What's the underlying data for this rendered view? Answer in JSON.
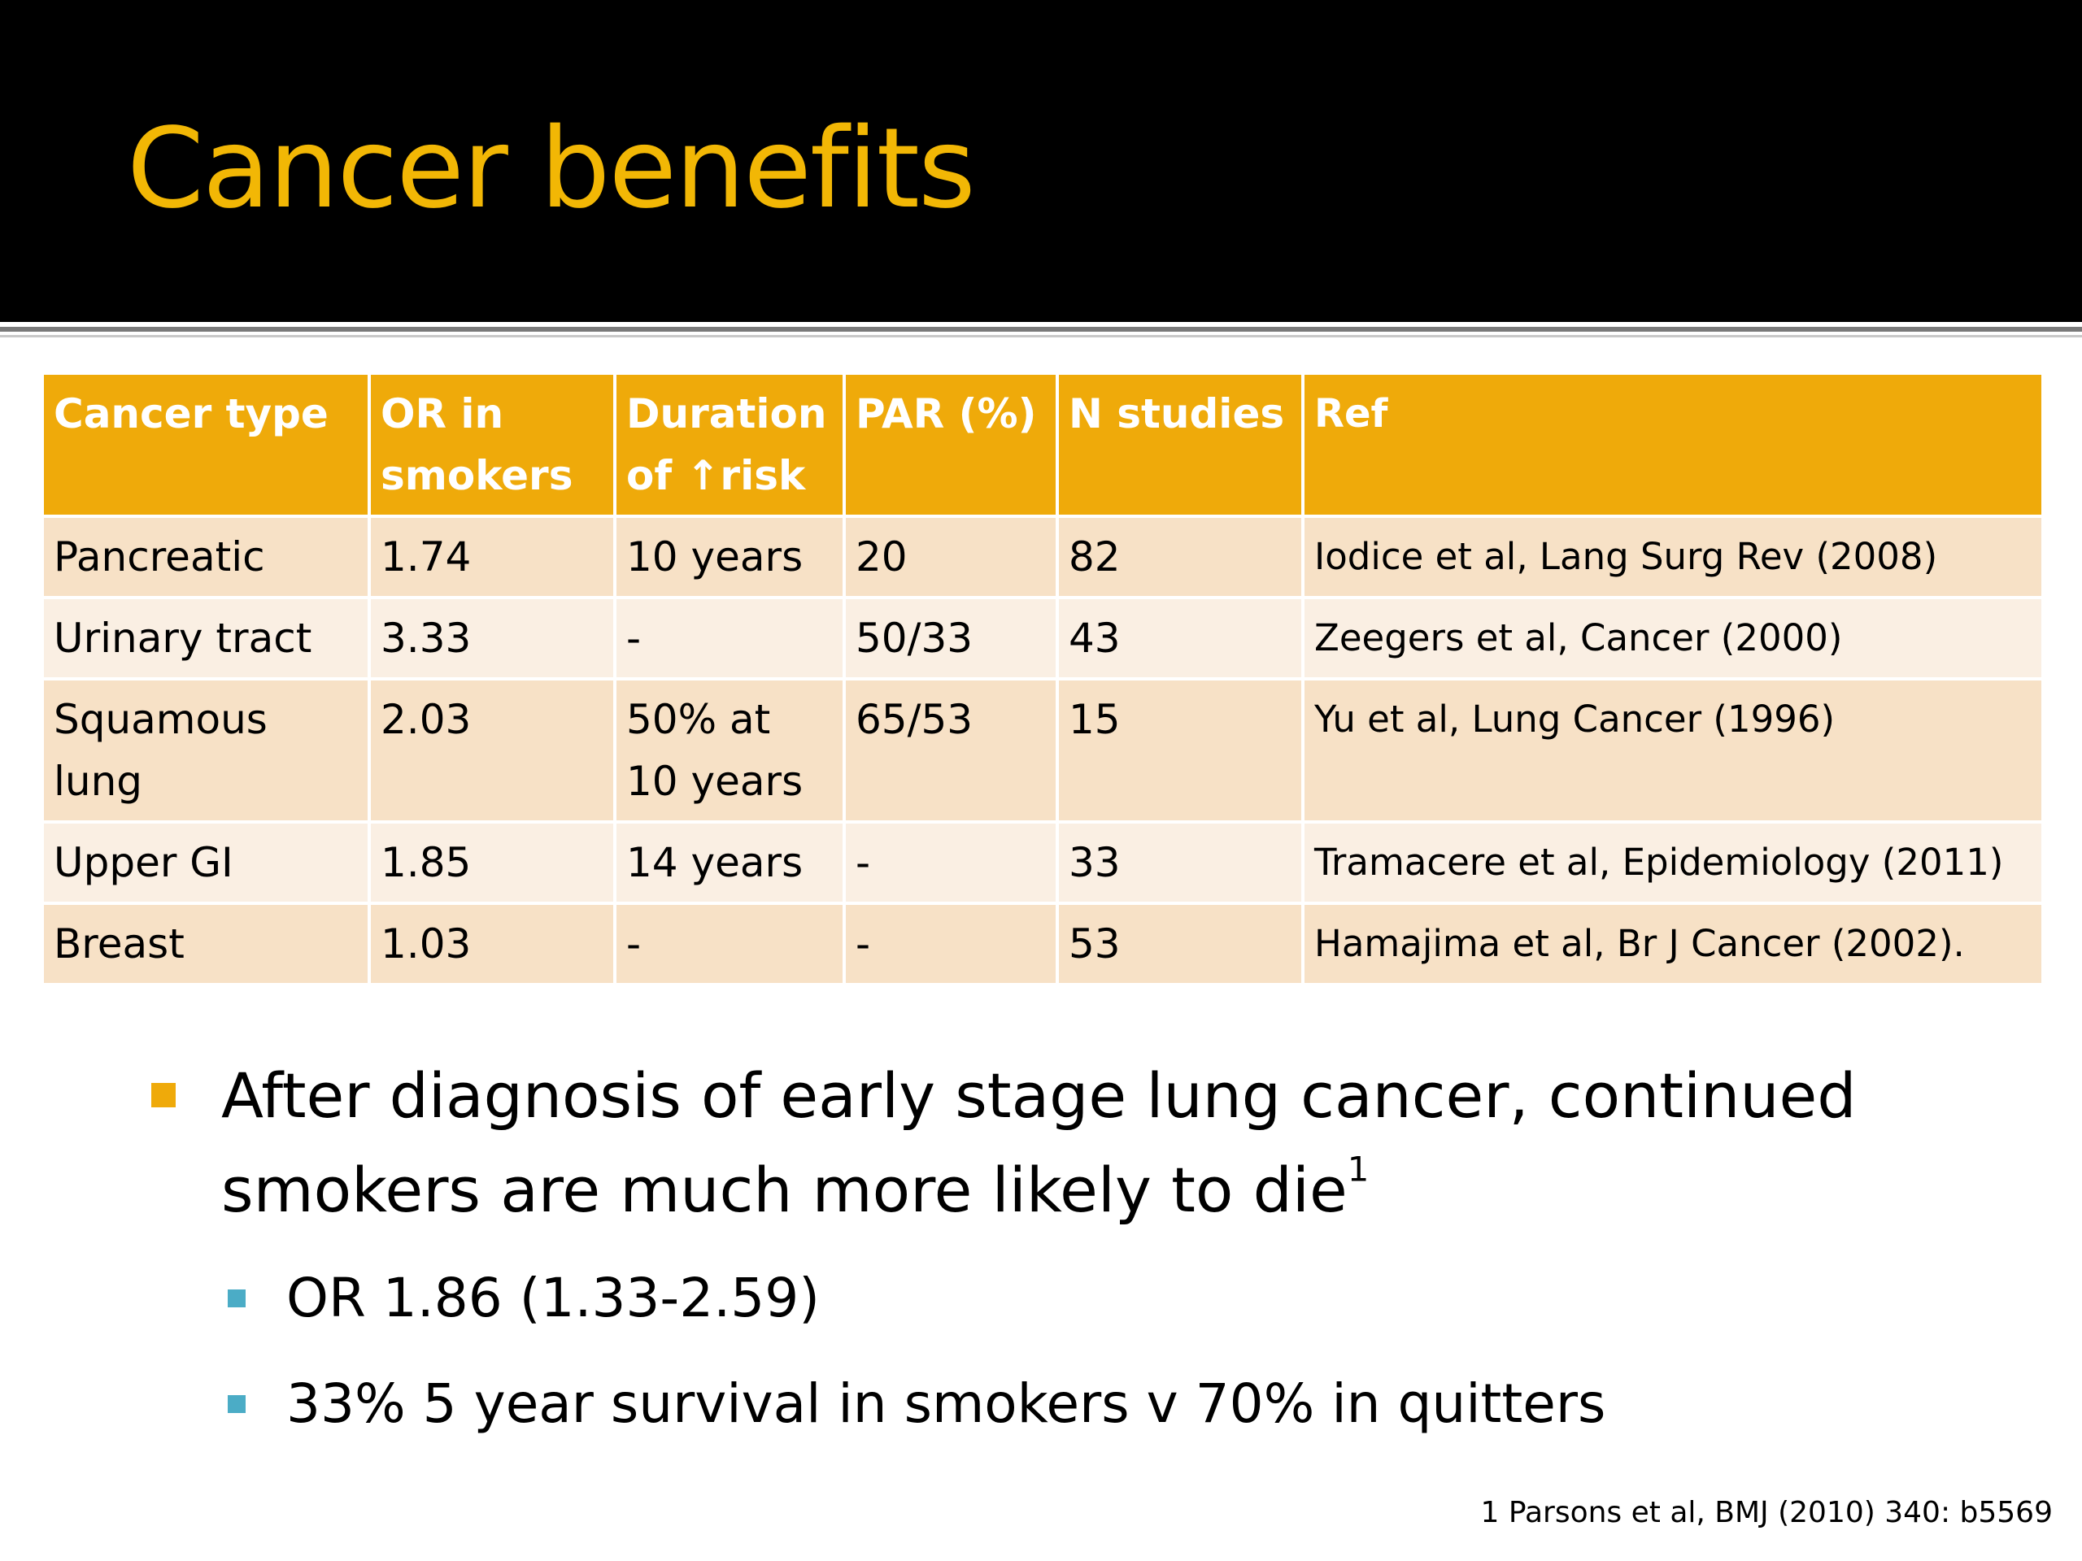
{
  "slide": {
    "title": "Cancer benefits"
  },
  "table": {
    "headers": [
      "Cancer type",
      "OR in smokers",
      "Duration of ↑risk",
      "PAR (%)",
      "N studies",
      "Ref"
    ],
    "rows": [
      [
        "Pancreatic",
        "1.74",
        "10 years",
        "20",
        "82",
        "Iodice et al, Lang Surg Rev (2008)"
      ],
      [
        "Urinary tract",
        "3.33",
        "-",
        "50/33",
        "43",
        "Zeegers et al, Cancer (2000)"
      ],
      [
        "Squamous lung",
        "2.03",
        "50% at 10 years",
        "65/53",
        "15",
        "Yu et al, Lung Cancer (1996)"
      ],
      [
        "Upper GI",
        "1.85",
        "14 years",
        "-",
        "33",
        "Tramacere et al, Epidemiology (2011)"
      ],
      [
        "Breast",
        "1.03",
        "-",
        "-",
        "53",
        "Hamajima et al, Br J Cancer (2002)."
      ]
    ]
  },
  "bullets": {
    "main": "After diagnosis of early stage lung cancer, continued smokers are much more likely to die",
    "main_sup": "1",
    "sub": [
      "OR 1.86 (1.33-2.59)",
      "33% 5 year survival in smokers v 70% in quitters"
    ]
  },
  "footnote": "1 Parsons et al, BMJ (2010) 340: b5569",
  "colors": {
    "title": "#f2b705",
    "header_bg": "#efaa0a",
    "row_odd": "#f7e1c6",
    "row_even": "#faefe3",
    "bullet_main": "#efaa0a",
    "bullet_sub": "#4bacc6"
  }
}
